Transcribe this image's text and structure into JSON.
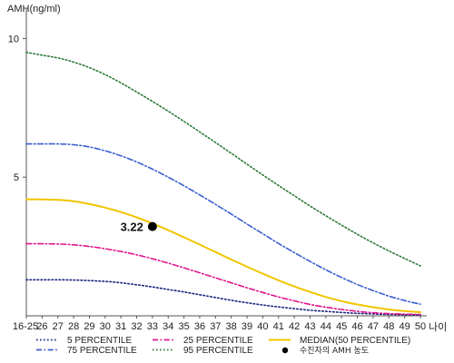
{
  "chart_data": {
    "type": "line",
    "title": "",
    "ylabel": "AMH(ng/ml)",
    "xlabel": "나이",
    "ylim": [
      0,
      10.8
    ],
    "yticks": [
      5,
      10
    ],
    "grid": false,
    "legend_position": "bottom",
    "categories": [
      "16-25",
      "26",
      "27",
      "28",
      "29",
      "30",
      "31",
      "32",
      "33",
      "34",
      "35",
      "36",
      "37",
      "38",
      "39",
      "40",
      "41",
      "42",
      "43",
      "44",
      "45",
      "46",
      "47",
      "48",
      "49",
      "50"
    ],
    "series": [
      {
        "name": "5 PERCENTILE",
        "key": "p5",
        "color": "#1a237e",
        "style": "dotted",
        "values": [
          1.3,
          1.3,
          1.3,
          1.29,
          1.27,
          1.24,
          1.19,
          1.12,
          1.04,
          0.95,
          0.86,
          0.76,
          0.66,
          0.56,
          0.47,
          0.39,
          0.32,
          0.26,
          0.2,
          0.16,
          0.12,
          0.09,
          0.07,
          0.05,
          0.04,
          0.03
        ]
      },
      {
        "name": "25 PERCENTILE",
        "key": "p25",
        "color": "#e0168c",
        "style": "dashdot",
        "values": [
          2.6,
          2.6,
          2.59,
          2.56,
          2.5,
          2.42,
          2.32,
          2.2,
          2.06,
          1.9,
          1.73,
          1.55,
          1.37,
          1.19,
          1.01,
          0.84,
          0.68,
          0.54,
          0.41,
          0.31,
          0.23,
          0.16,
          0.11,
          0.08,
          0.06,
          0.05
        ]
      },
      {
        "name": "MEDIAN(50 PERCENTILE)",
        "key": "p50",
        "color": "#f2c500",
        "style": "solid",
        "values": [
          4.2,
          4.2,
          4.18,
          4.13,
          4.03,
          3.9,
          3.74,
          3.55,
          3.33,
          3.09,
          2.83,
          2.57,
          2.3,
          2.03,
          1.77,
          1.52,
          1.28,
          1.06,
          0.86,
          0.68,
          0.53,
          0.41,
          0.31,
          0.23,
          0.17,
          0.13
        ]
      },
      {
        "name": "75 PERCENTILE",
        "key": "p75",
        "color": "#3b5fcf",
        "style": "dashdot",
        "values": [
          6.2,
          6.2,
          6.2,
          6.17,
          6.09,
          5.95,
          5.77,
          5.55,
          5.29,
          5.0,
          4.69,
          4.36,
          4.02,
          3.67,
          3.31,
          2.96,
          2.61,
          2.28,
          1.96,
          1.66,
          1.38,
          1.13,
          0.91,
          0.71,
          0.55,
          0.42
        ]
      },
      {
        "name": "95 PERCENTILE",
        "key": "p95",
        "color": "#2f7a3a",
        "style": "dotted",
        "values": [
          9.5,
          9.4,
          9.3,
          9.15,
          8.95,
          8.7,
          8.4,
          8.07,
          7.73,
          7.38,
          7.01,
          6.63,
          6.25,
          5.86,
          5.47,
          5.08,
          4.7,
          4.33,
          3.96,
          3.61,
          3.27,
          2.94,
          2.63,
          2.34,
          2.07,
          1.8
        ]
      }
    ],
    "highlight_point": {
      "category": "33",
      "value": 3.22,
      "label": "3.22",
      "color": "#000000"
    },
    "legend": {
      "items": [
        {
          "label": "5 PERCENTILE",
          "key": "p5"
        },
        {
          "label": "25 PERCENTILE",
          "key": "p25"
        },
        {
          "label": "MEDIAN(50 PERCENTILE)",
          "key": "p50"
        },
        {
          "label": "75 PERCENTILE",
          "key": "p75"
        },
        {
          "label": "95 PERCENTILE",
          "key": "p95"
        },
        {
          "label": "수진자의 AMH 농도",
          "key": "point"
        }
      ]
    }
  }
}
